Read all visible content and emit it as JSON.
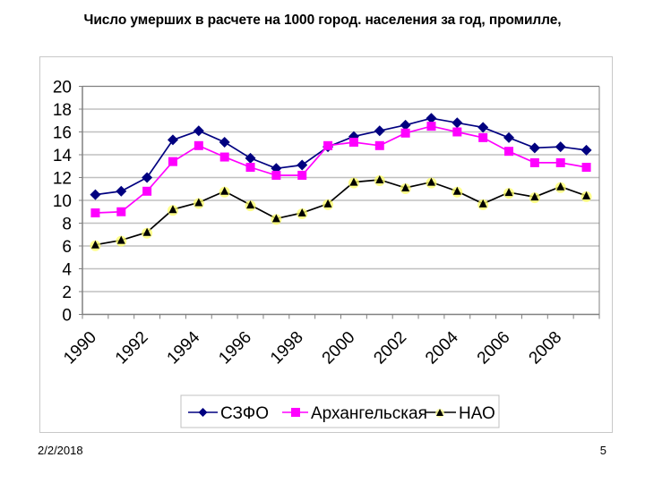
{
  "slide": {
    "title": "Число умерших в расчете на 1000 город. населения за год, промилле,",
    "footer_date": "2/2/2018",
    "page_number": "5"
  },
  "colors": {
    "szfo": "#000080",
    "arkh": "#ff00ff",
    "nao_line": "#000000",
    "nao_marker_fill": "#000000",
    "nao_marker_halo": "#ffff66",
    "grid": "#c0c0c0",
    "axis": "#808080"
  },
  "chart_data": {
    "type": "line",
    "title": "Число умерших в расчете на 1000 город. населения за год, промилле,",
    "xlabel": "",
    "ylabel": "",
    "ylim": [
      0,
      20
    ],
    "yticks": [
      0,
      2,
      4,
      6,
      8,
      10,
      12,
      14,
      16,
      18,
      20
    ],
    "grid": true,
    "legend_position": "bottom",
    "x": [
      1990,
      1991,
      1992,
      1993,
      1994,
      1995,
      1996,
      1997,
      1998,
      1999,
      2000,
      2001,
      2002,
      2003,
      2004,
      2005,
      2006,
      2007,
      2008,
      2009
    ],
    "xtick_labels": [
      "1990",
      "1992",
      "1994",
      "1996",
      "1998",
      "2000",
      "2002",
      "2004",
      "2006",
      "2008"
    ],
    "series": [
      {
        "name": "СЗФО",
        "marker": "diamond",
        "values": [
          10.5,
          10.8,
          12.0,
          15.3,
          16.1,
          15.1,
          13.7,
          12.8,
          13.1,
          14.7,
          15.6,
          16.1,
          16.6,
          17.2,
          16.8,
          16.4,
          15.5,
          14.6,
          14.7,
          14.4
        ]
      },
      {
        "name": "Архангельская",
        "marker": "square",
        "values": [
          8.9,
          9.0,
          10.8,
          13.4,
          14.8,
          13.8,
          12.9,
          12.2,
          12.2,
          14.8,
          15.1,
          14.8,
          15.9,
          16.5,
          16.0,
          15.5,
          14.3,
          13.3,
          13.3,
          12.9
        ]
      },
      {
        "name": "НАО",
        "marker": "triangle",
        "values": [
          6.1,
          6.5,
          7.2,
          9.2,
          9.8,
          10.8,
          9.6,
          8.4,
          8.9,
          9.7,
          11.6,
          11.8,
          11.1,
          11.6,
          10.8,
          9.7,
          10.7,
          10.3,
          11.2,
          10.4
        ]
      }
    ]
  },
  "legend": {
    "items": [
      {
        "label": "СЗФО"
      },
      {
        "label": "Архангельская"
      },
      {
        "label": "НАО"
      }
    ]
  }
}
